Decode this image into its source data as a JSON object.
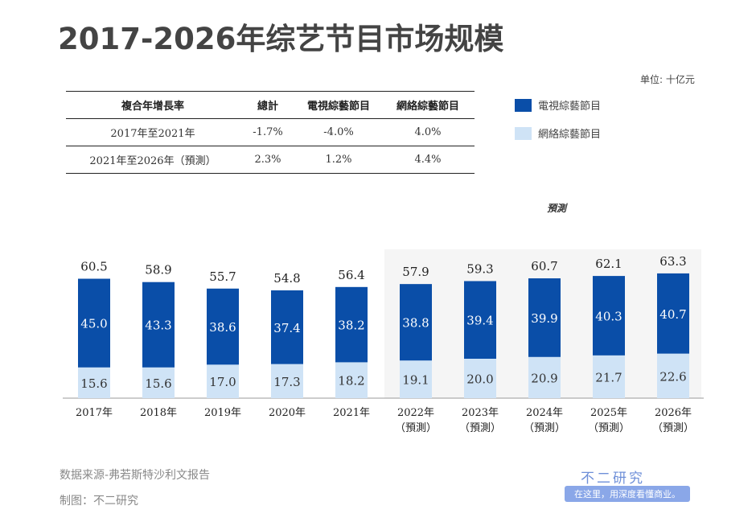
{
  "title": "2017-2026年综艺节目市场规模",
  "unit": "单位: 十亿元",
  "table": {
    "headers": [
      "複合年增長率",
      "總計",
      "電視綜藝節目",
      "網絡綜藝節目"
    ],
    "rows": [
      [
        "2017年至2021年",
        "-1.7%",
        "-4.0%",
        "4.0%"
      ],
      [
        "2021年至2026年（預測）",
        "2.3%",
        "1.2%",
        "4.4%"
      ]
    ]
  },
  "forecast_label": "預測",
  "chart_data": {
    "type": "bar",
    "stacked": true,
    "categories": [
      "2017年",
      "2018年",
      "2019年",
      "2020年",
      "2021年",
      "2022年\n（預測）",
      "2023年\n（預測）",
      "2024年\n（預測）",
      "2025年\n（預測）",
      "2026年\n（預測）"
    ],
    "series": [
      {
        "name": "電視綜藝節目",
        "color": "#0a4ea8",
        "values": [
          45.0,
          43.3,
          38.6,
          37.4,
          38.2,
          38.8,
          39.4,
          39.9,
          40.3,
          40.7
        ]
      },
      {
        "name": "網絡綜藝節目",
        "color": "#cfe3f6",
        "values": [
          15.6,
          15.6,
          17.0,
          17.3,
          18.2,
          19.1,
          20.0,
          20.9,
          21.7,
          22.6
        ]
      }
    ],
    "totals": [
      60.5,
      58.9,
      55.7,
      54.8,
      56.4,
      57.9,
      59.3,
      60.7,
      62.1,
      63.3
    ],
    "legend": "top-right"
  },
  "source": "数据来源-弗若斯特沙利文报告",
  "maker": "制图：不二研究",
  "brand": "不二研究",
  "slogan": "在这里，用深度看懂商业。"
}
